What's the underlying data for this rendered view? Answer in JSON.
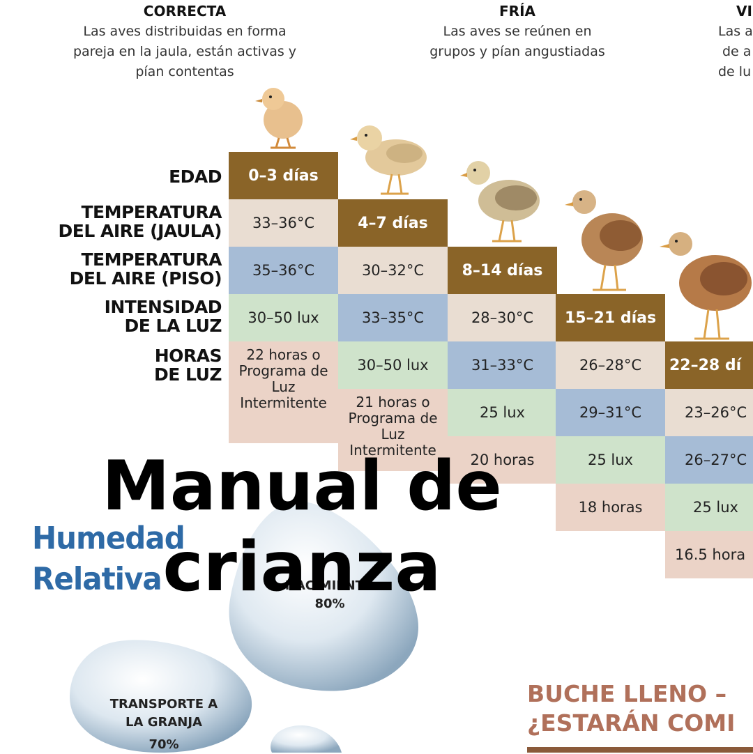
{
  "descriptions": [
    {
      "heading": "CORRECTA",
      "lines": [
        "Las aves distribuidas en forma",
        "pareja en la jaula, están activas y",
        "pían contentas"
      ]
    },
    {
      "heading": "FRÍA",
      "lines": [
        "Las aves se reúnen en",
        "grupos y pían angustiadas"
      ]
    },
    {
      "heading": "VI",
      "lines": [
        "Las a",
        "de a",
        "de lu"
      ]
    }
  ],
  "row_labels": {
    "edad": "EDAD",
    "temp_jaula_1": "TEMPERATURA",
    "temp_jaula_2": "DEL AIRE (JAULA)",
    "temp_piso_1": "TEMPERATURA",
    "temp_piso_2": "DEL AIRE (PISO)",
    "luz_1": "INTENSIDAD",
    "luz_2": "DE LA LUZ",
    "horas_1": "HORAS",
    "horas_2": "DE LUZ"
  },
  "columns": [
    {
      "age": "0–3 días",
      "temp_jaula": "33–36°C",
      "temp_piso": "35–36°C",
      "lux": "30–50 lux",
      "hours": "22 horas o Programa de Luz Intermitente"
    },
    {
      "age": "4–7 días",
      "temp_jaula": "30–32°C",
      "temp_piso": "33–35°C",
      "lux": "30–50 lux",
      "hours": "21 horas o Programa de Luz Intermitente"
    },
    {
      "age": "8–14 días",
      "temp_jaula": "28–30°C",
      "temp_piso": "31–33°C",
      "lux": "25 lux",
      "hours": "20 horas"
    },
    {
      "age": "15–21 días",
      "temp_jaula": "26–28°C",
      "temp_piso": "29–31°C",
      "lux": "25 lux",
      "hours": "18 horas"
    },
    {
      "age": "22–28 dí",
      "temp_jaula": "23–26°C",
      "temp_piso": "26–27°C",
      "lux": "25 lux",
      "hours": "16.5 hora"
    }
  ],
  "humidity": {
    "title_1": "Humedad",
    "title_2": "Relativa",
    "drop_1_label": "NACIMIENTO",
    "drop_1_value": "80%",
    "drop_2_label_1": "TRANSPORTE A",
    "drop_2_label_2": "LA GRANJA",
    "drop_2_value": "70%"
  },
  "buche": {
    "line_1": "BUCHE LLENO –",
    "line_2": "¿ESTARÁN COMI"
  },
  "overlay_title": {
    "line_1": "Manual de",
    "line_2": "crianza"
  },
  "colors": {
    "age": "#8a6428",
    "temp_jaula": "#e9ddd2",
    "temp_piso": "#a6bcd6",
    "lux": "#cfe3cb",
    "hours": "#ebd3c7",
    "humidity_blue": "#2e6aa6",
    "buche": "#b0705a"
  }
}
